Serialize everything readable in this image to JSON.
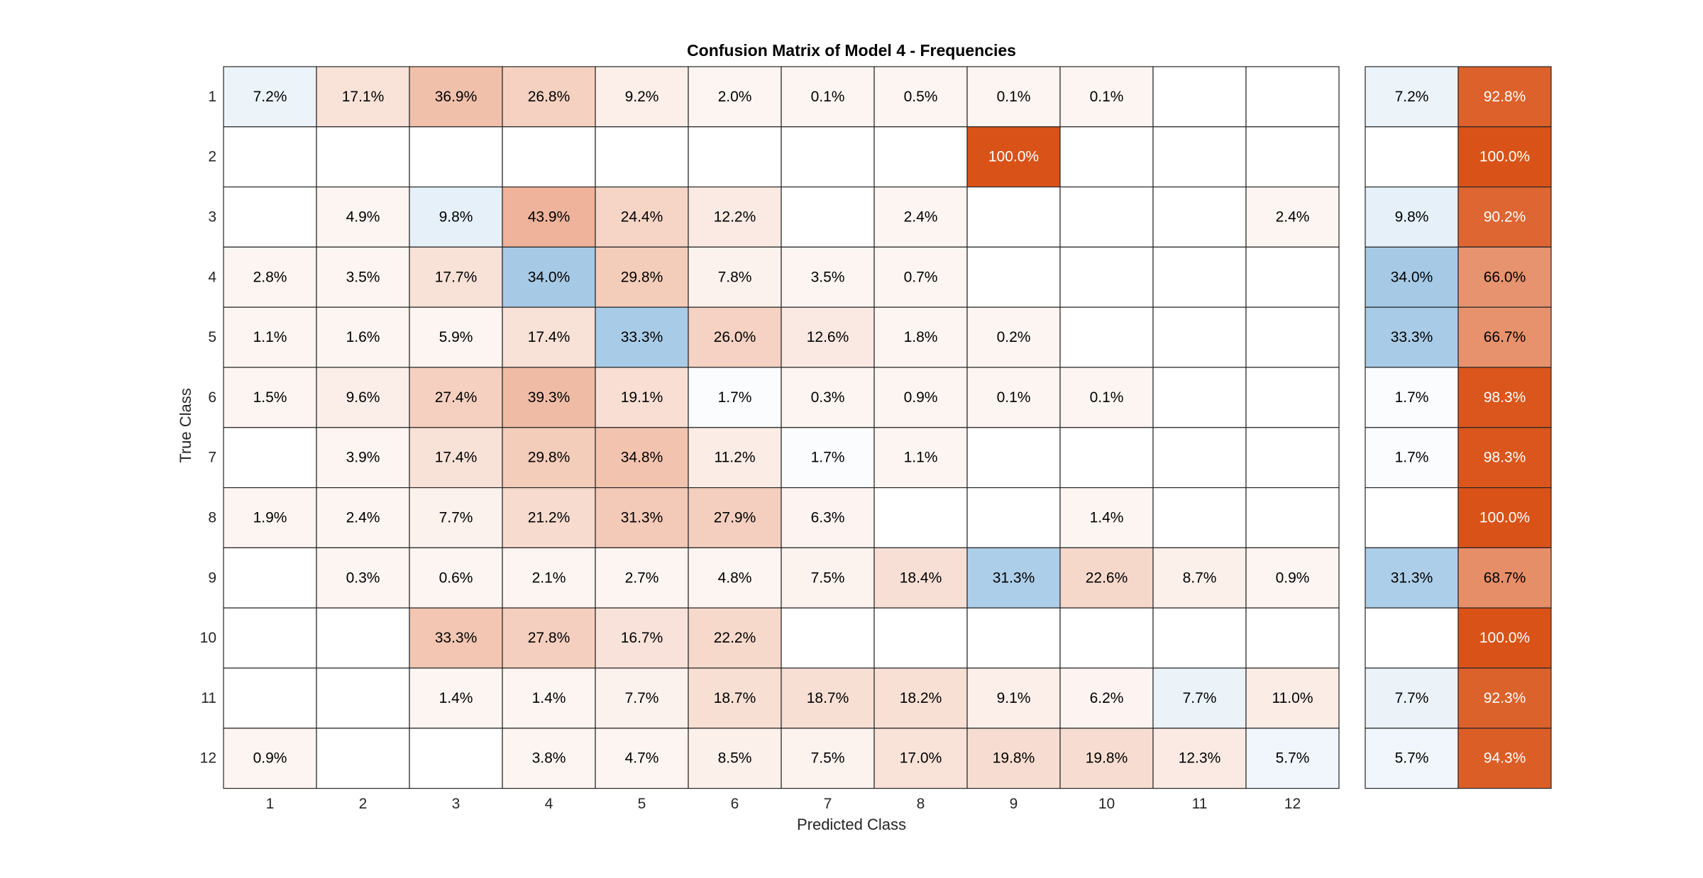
{
  "chart_data": {
    "type": "heatmap",
    "title": "Confusion Matrix of Model 4 - Frequencies",
    "xlabel": "Predicted Class",
    "ylabel": "True Class",
    "row_labels": [
      "1",
      "2",
      "3",
      "4",
      "5",
      "6",
      "7",
      "8",
      "9",
      "10",
      "11",
      "12"
    ],
    "col_labels": [
      "1",
      "2",
      "3",
      "4",
      "5",
      "6",
      "7",
      "8",
      "9",
      "10",
      "11",
      "12"
    ],
    "cells": [
      [
        "7.2%",
        "17.1%",
        "36.9%",
        "26.8%",
        "9.2%",
        "2.0%",
        "0.1%",
        "0.5%",
        "0.1%",
        "0.1%",
        "",
        ""
      ],
      [
        "",
        "",
        "",
        "",
        "",
        "",
        "",
        "",
        "100.0%",
        "",
        "",
        ""
      ],
      [
        "",
        "4.9%",
        "9.8%",
        "43.9%",
        "24.4%",
        "12.2%",
        "",
        "2.4%",
        "",
        "",
        "",
        "2.4%"
      ],
      [
        "2.8%",
        "3.5%",
        "17.7%",
        "34.0%",
        "29.8%",
        "7.8%",
        "3.5%",
        "0.7%",
        "",
        "",
        "",
        ""
      ],
      [
        "1.1%",
        "1.6%",
        "5.9%",
        "17.4%",
        "33.3%",
        "26.0%",
        "12.6%",
        "1.8%",
        "0.2%",
        "",
        "",
        ""
      ],
      [
        "1.5%",
        "9.6%",
        "27.4%",
        "39.3%",
        "19.1%",
        "1.7%",
        "0.3%",
        "0.9%",
        "0.1%",
        "0.1%",
        "",
        ""
      ],
      [
        "",
        "3.9%",
        "17.4%",
        "29.8%",
        "34.8%",
        "11.2%",
        "1.7%",
        "1.1%",
        "",
        "",
        "",
        ""
      ],
      [
        "1.9%",
        "2.4%",
        "7.7%",
        "21.2%",
        "31.3%",
        "27.9%",
        "6.3%",
        "",
        "",
        "1.4%",
        "",
        ""
      ],
      [
        "",
        "0.3%",
        "0.6%",
        "2.1%",
        "2.7%",
        "4.8%",
        "7.5%",
        "18.4%",
        "31.3%",
        "22.6%",
        "8.7%",
        "0.9%"
      ],
      [
        "",
        "",
        "33.3%",
        "27.8%",
        "16.7%",
        "22.2%",
        "",
        "",
        "",
        "",
        "",
        ""
      ],
      [
        "",
        "",
        "1.4%",
        "1.4%",
        "7.7%",
        "18.7%",
        "18.7%",
        "18.2%",
        "9.1%",
        "6.2%",
        "7.7%",
        "11.0%"
      ],
      [
        "0.9%",
        "",
        "",
        "3.8%",
        "4.7%",
        "8.5%",
        "7.5%",
        "17.0%",
        "19.8%",
        "19.8%",
        "12.3%",
        "5.7%"
      ]
    ],
    "row_summary": [
      [
        "7.2%",
        "92.8%"
      ],
      [
        "",
        "100.0%"
      ],
      [
        "9.8%",
        "90.2%"
      ],
      [
        "34.0%",
        "66.0%"
      ],
      [
        "33.3%",
        "66.7%"
      ],
      [
        "1.7%",
        "98.3%"
      ],
      [
        "1.7%",
        "98.3%"
      ],
      [
        "",
        "100.0%"
      ],
      [
        "31.3%",
        "68.7%"
      ],
      [
        "",
        "100.0%"
      ],
      [
        "7.7%",
        "92.3%"
      ],
      [
        "5.7%",
        "94.3%"
      ]
    ],
    "colors": {
      "correct_max": "#a6cae6",
      "incorrect_max": "#d95319",
      "empty": "#ffffff",
      "grid_line": "#262626",
      "tick_text": "#262626"
    }
  }
}
